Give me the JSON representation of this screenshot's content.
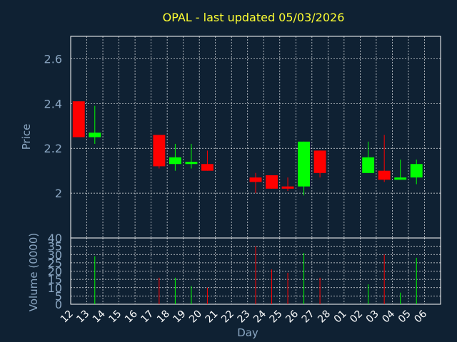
{
  "chart_data": [
    {
      "type": "candlestick",
      "title": "OPAL - last updated 05/03/2026",
      "ylabel": "Price",
      "ylim": [
        1.8,
        2.7
      ],
      "yticks": [
        "2",
        "2.2",
        "2.4",
        "2.6"
      ],
      "ytick_values": [
        2.0,
        2.2,
        2.4,
        2.6
      ],
      "categories": [
        "12",
        "13",
        "14",
        "15",
        "16",
        "17",
        "18",
        "19",
        "20",
        "21",
        "22",
        "23",
        "24",
        "25",
        "26",
        "27",
        "28",
        "01",
        "02",
        "03",
        "04",
        "05",
        "06"
      ],
      "candles": [
        {
          "day": "12",
          "open": 2.41,
          "high": 2.41,
          "low": 2.25,
          "close": 2.25
        },
        {
          "day": "13",
          "open": 2.25,
          "high": 2.39,
          "low": 2.22,
          "close": 2.27
        },
        {
          "day": "17",
          "open": 2.26,
          "high": 2.26,
          "low": 2.11,
          "close": 2.12
        },
        {
          "day": "18",
          "open": 2.13,
          "high": 2.22,
          "low": 2.1,
          "close": 2.16
        },
        {
          "day": "19",
          "open": 2.13,
          "high": 2.22,
          "low": 2.11,
          "close": 2.14
        },
        {
          "day": "20",
          "open": 2.13,
          "high": 2.19,
          "low": 2.1,
          "close": 2.1
        },
        {
          "day": "23",
          "open": 2.07,
          "high": 2.09,
          "low": 2.0,
          "close": 2.05
        },
        {
          "day": "24",
          "open": 2.08,
          "high": 2.08,
          "low": 2.02,
          "close": 2.02
        },
        {
          "day": "25",
          "open": 2.03,
          "high": 2.07,
          "low": 2.01,
          "close": 2.02
        },
        {
          "day": "26",
          "open": 2.03,
          "high": 2.23,
          "low": 1.99,
          "close": 2.23
        },
        {
          "day": "27",
          "open": 2.19,
          "high": 2.19,
          "low": 2.07,
          "close": 2.09
        },
        {
          "day": "02",
          "open": 2.09,
          "high": 2.23,
          "low": 2.09,
          "close": 2.16
        },
        {
          "day": "03",
          "open": 2.1,
          "high": 2.26,
          "low": 2.05,
          "close": 2.06
        },
        {
          "day": "04",
          "open": 2.06,
          "high": 2.15,
          "low": 2.06,
          "close": 2.07
        },
        {
          "day": "05",
          "open": 2.07,
          "high": 2.15,
          "low": 2.04,
          "close": 2.13
        }
      ],
      "colors": {
        "up": "#00ff00",
        "down": "#ff0000"
      },
      "grid": true
    },
    {
      "type": "bar",
      "ylabel": "Volume (0000)",
      "xlabel": "Day",
      "ylim": [
        0,
        40
      ],
      "yticks": [
        "0",
        "5",
        "10",
        "15",
        "20",
        "25",
        "30",
        "35",
        "40"
      ],
      "ytick_values": [
        0,
        5,
        10,
        15,
        20,
        25,
        30,
        35,
        40
      ],
      "categories": [
        "12",
        "13",
        "14",
        "15",
        "16",
        "17",
        "18",
        "19",
        "20",
        "21",
        "22",
        "23",
        "24",
        "25",
        "26",
        "27",
        "28",
        "01",
        "02",
        "03",
        "04",
        "05",
        "06"
      ],
      "bars": [
        {
          "day": "13",
          "value": 29,
          "color": "#00ff00"
        },
        {
          "day": "17",
          "value": 16,
          "color": "#ff0000"
        },
        {
          "day": "18",
          "value": 16,
          "color": "#00ff00"
        },
        {
          "day": "19",
          "value": 11,
          "color": "#00ff00"
        },
        {
          "day": "20",
          "value": 10,
          "color": "#ff0000"
        },
        {
          "day": "23",
          "value": 35,
          "color": "#ff0000"
        },
        {
          "day": "24",
          "value": 21,
          "color": "#ff0000"
        },
        {
          "day": "25",
          "value": 19,
          "color": "#ff0000"
        },
        {
          "day": "26",
          "value": 31,
          "color": "#00ff00"
        },
        {
          "day": "27",
          "value": 16,
          "color": "#ff0000"
        },
        {
          "day": "02",
          "value": 12,
          "color": "#00ff00"
        },
        {
          "day": "03",
          "value": 30,
          "color": "#ff0000"
        },
        {
          "day": "04",
          "value": 7,
          "color": "#00ff00"
        },
        {
          "day": "05",
          "value": 28,
          "color": "#00ff00"
        }
      ],
      "grid": true
    }
  ]
}
